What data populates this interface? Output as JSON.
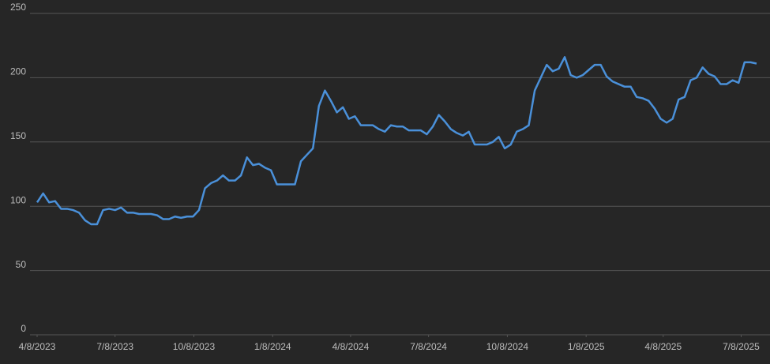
{
  "chart_data": {
    "type": "line",
    "x": [
      "2023-04-08",
      "2023-04-15",
      "2023-04-22",
      "2023-04-29",
      "2023-05-06",
      "2023-05-13",
      "2023-05-20",
      "2023-05-27",
      "2023-06-03",
      "2023-06-10",
      "2023-06-17",
      "2023-06-24",
      "2023-07-01",
      "2023-07-08",
      "2023-07-15",
      "2023-07-22",
      "2023-07-29",
      "2023-08-05",
      "2023-08-12",
      "2023-08-19",
      "2023-08-26",
      "2023-09-02",
      "2023-09-09",
      "2023-09-16",
      "2023-09-23",
      "2023-09-30",
      "2023-10-07",
      "2023-10-14",
      "2023-10-21",
      "2023-10-28",
      "2023-11-04",
      "2023-11-11",
      "2023-11-18",
      "2023-11-25",
      "2023-12-02",
      "2023-12-09",
      "2023-12-16",
      "2023-12-23",
      "2023-12-30",
      "2024-01-06",
      "2024-01-13",
      "2024-01-20",
      "2024-01-27",
      "2024-02-03",
      "2024-02-10",
      "2024-02-17",
      "2024-02-24",
      "2024-03-02",
      "2024-03-09",
      "2024-03-16",
      "2024-03-23",
      "2024-03-30",
      "2024-04-06",
      "2024-04-13",
      "2024-04-20",
      "2024-04-27",
      "2024-05-04",
      "2024-05-11",
      "2024-05-18",
      "2024-05-25",
      "2024-06-01",
      "2024-06-08",
      "2024-06-15",
      "2024-06-22",
      "2024-06-29",
      "2024-07-06",
      "2024-07-13",
      "2024-07-20",
      "2024-07-27",
      "2024-08-03",
      "2024-08-10",
      "2024-08-17",
      "2024-08-24",
      "2024-08-31",
      "2024-09-07",
      "2024-09-14",
      "2024-09-21",
      "2024-09-28",
      "2024-10-05",
      "2024-10-12",
      "2024-10-19",
      "2024-10-26",
      "2024-11-02",
      "2024-11-09",
      "2024-11-16",
      "2024-11-23",
      "2024-11-30",
      "2024-12-07",
      "2024-12-14",
      "2024-12-21",
      "2024-12-28",
      "2025-01-04",
      "2025-01-11",
      "2025-01-18",
      "2025-01-25",
      "2025-02-01",
      "2025-02-08",
      "2025-02-15",
      "2025-02-22",
      "2025-03-01",
      "2025-03-08",
      "2025-03-15",
      "2025-03-22",
      "2025-03-29",
      "2025-04-05",
      "2025-04-12",
      "2025-04-19",
      "2025-04-26",
      "2025-05-03",
      "2025-05-10",
      "2025-05-17",
      "2025-05-24",
      "2025-05-31",
      "2025-06-07",
      "2025-06-14",
      "2025-06-21",
      "2025-06-28",
      "2025-07-05",
      "2025-07-12",
      "2025-07-19",
      "2025-07-26"
    ],
    "series": [
      {
        "color": "#4a90d9",
        "values": [
          103,
          110,
          103,
          104,
          98,
          98,
          97,
          95,
          89,
          86,
          86,
          97,
          98,
          97,
          99,
          95,
          95,
          94,
          94,
          94,
          93,
          90,
          90,
          92,
          91,
          92,
          92,
          97,
          114,
          118,
          120,
          124,
          120,
          120,
          124,
          138,
          132,
          133,
          130,
          128,
          117,
          117,
          117,
          117,
          135,
          140,
          145,
          178,
          190,
          182,
          173,
          177,
          168,
          170,
          163,
          163,
          163,
          160,
          158,
          163,
          162,
          162,
          159,
          159,
          159,
          156,
          162,
          171,
          166,
          160,
          157,
          155,
          158,
          148,
          148,
          148,
          150,
          154,
          145,
          148,
          158,
          160,
          163,
          190,
          200,
          210,
          205,
          207,
          216,
          202,
          200,
          202,
          206,
          210,
          210,
          201,
          197,
          195,
          193,
          193,
          185,
          184,
          182,
          176,
          168,
          165,
          168,
          183,
          185,
          198,
          200,
          208,
          203,
          201,
          195,
          195,
          198,
          196,
          212,
          212,
          211
        ]
      }
    ],
    "xlim": [
      "2023-04-08",
      "2025-07-26"
    ],
    "xticks": [
      {
        "value": "2023-04-08",
        "label": "4/8/2023"
      },
      {
        "value": "2023-07-08",
        "label": "7/8/2023"
      },
      {
        "value": "2023-10-08",
        "label": "10/8/2023"
      },
      {
        "value": "2024-01-08",
        "label": "1/8/2024"
      },
      {
        "value": "2024-04-08",
        "label": "4/8/2024"
      },
      {
        "value": "2024-07-08",
        "label": "7/8/2024"
      },
      {
        "value": "2024-10-08",
        "label": "10/8/2024"
      },
      {
        "value": "2025-01-08",
        "label": "1/8/2025"
      },
      {
        "value": "2025-04-08",
        "label": "4/8/2025"
      },
      {
        "value": "2025-07-08",
        "label": "7/8/2025"
      }
    ],
    "ylim": [
      0,
      250
    ],
    "yticks": [
      0,
      50,
      100,
      150,
      200,
      250
    ],
    "grid": true
  }
}
